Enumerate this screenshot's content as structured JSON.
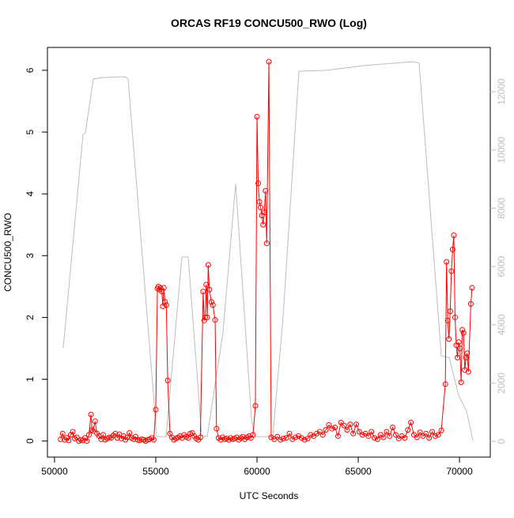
{
  "chart_data": {
    "type": "line",
    "title": "ORCAS RF19 CONCU500_RWO (Log)",
    "x_label": "UTC Seconds",
    "y_label": "CONCU500_RWO",
    "xlim": [
      49650,
      71520
    ],
    "ylim": [
      -0.26,
      6.37
    ],
    "y2lim": [
      -540,
      13520
    ],
    "xticks": [
      50000,
      55000,
      60000,
      65000,
      70000
    ],
    "yticks": [
      0,
      1,
      2,
      3,
      4,
      5,
      6
    ],
    "y2ticks": [
      0,
      2000,
      4000,
      6000,
      8000,
      10000,
      12000
    ],
    "y2_color": "#bebebe",
    "grid": false,
    "series": [
      {
        "color": "#ff0000",
        "marker": "circle",
        "x": [
          50300,
          50400,
          50500,
          50600,
          50700,
          50800,
          50900,
          51000,
          51100,
          51200,
          51300,
          51400,
          51500,
          51600,
          51700,
          51800,
          51850,
          51900,
          52000,
          52100,
          52200,
          52300,
          52400,
          52500,
          52600,
          52700,
          52800,
          52900,
          53000,
          53100,
          53200,
          53300,
          53400,
          53500,
          53600,
          53700,
          53800,
          53900,
          54000,
          54100,
          54200,
          54300,
          54400,
          54500,
          54600,
          54700,
          54800,
          54900,
          55000,
          55080,
          55130,
          55180,
          55230,
          55300,
          55350,
          55400,
          55460,
          55520,
          55590,
          55700,
          55800,
          55900,
          56000,
          56100,
          56200,
          56300,
          56400,
          56500,
          56600,
          56700,
          56800,
          56900,
          57000,
          57100,
          57200,
          57340,
          57390,
          57440,
          57490,
          57540,
          57590,
          57650,
          57750,
          57820,
          57930,
          58000,
          58100,
          58200,
          58300,
          58400,
          58500,
          58600,
          58700,
          58800,
          58900,
          59000,
          59100,
          59200,
          59300,
          59400,
          59500,
          59600,
          59700,
          59800,
          59920,
          60000,
          60060,
          60120,
          60180,
          60240,
          60300,
          60360,
          60420,
          60480,
          60586,
          60700,
          60850,
          61000,
          61150,
          61300,
          61450,
          61600,
          61750,
          61900,
          62050,
          62200,
          62350,
          62500,
          62650,
          62800,
          62950,
          63100,
          63250,
          63400,
          63550,
          63700,
          63850,
          64000,
          64150,
          64300,
          64450,
          64600,
          64750,
          64900,
          65050,
          65200,
          65350,
          65500,
          65650,
          65800,
          65950,
          66100,
          66250,
          66400,
          66550,
          66700,
          66850,
          67000,
          67150,
          67300,
          67450,
          67600,
          67750,
          67900,
          68050,
          68200,
          68350,
          68500,
          68650,
          68800,
          68950,
          69100,
          69300,
          69360,
          69420,
          69480,
          69540,
          69600,
          69660,
          69720,
          69780,
          69840,
          69900,
          69960,
          70020,
          70080,
          70140,
          70200,
          70260,
          70320,
          70380,
          70440,
          70560,
          70620
        ],
        "values": [
          0.03,
          0.12,
          0.02,
          0.05,
          0.01,
          0.1,
          0.15,
          0.04,
          0.06,
          0,
          0.02,
          0.01,
          0.05,
          0,
          0.1,
          0.43,
          0.18,
          0.16,
          0.32,
          0.12,
          0.08,
          0.03,
          0.1,
          0.02,
          0.04,
          0.06,
          0.05,
          0.09,
          0.12,
          0.05,
          0.11,
          0.04,
          0.08,
          0.02,
          0.06,
          0.13,
          0.05,
          0.03,
          0.07,
          0.02,
          0.01,
          0.03,
          0.02,
          0,
          0.02,
          0.03,
          0.05,
          0.02,
          0.51,
          2.47,
          2.5,
          2.45,
          2.48,
          2.42,
          2.18,
          2.48,
          2.25,
          2.2,
          0.98,
          0.12,
          0.06,
          0.02,
          0.04,
          0.06,
          0.08,
          0.05,
          0.1,
          0.07,
          0.05,
          0.12,
          0.13,
          0.08,
          0.04,
          0.02,
          0.06,
          2.42,
          1.95,
          2.0,
          2.53,
          2.0,
          2.85,
          2.45,
          2.25,
          2.2,
          1.96,
          0.2,
          0.05,
          0.02,
          0.06,
          0.03,
          0.04,
          0.02,
          0.05,
          0.03,
          0.04,
          0.06,
          0.02,
          0.05,
          0.07,
          0.03,
          0.06,
          0.08,
          0.05,
          0.1,
          0.57,
          5.25,
          4.17,
          3.87,
          3.78,
          3.65,
          3.5,
          3.7,
          4.05,
          3.2,
          6.14,
          0.06,
          0.03,
          0.07,
          0.02,
          0.04,
          0.05,
          0.12,
          0.03,
          0.06,
          0.08,
          0.05,
          0.02,
          0.04,
          0.1,
          0.08,
          0.12,
          0.15,
          0.1,
          0.18,
          0.26,
          0.2,
          0.22,
          0.08,
          0.3,
          0.25,
          0.18,
          0.27,
          0.12,
          0.27,
          0.15,
          0.1,
          0.12,
          0.08,
          0.15,
          0.05,
          0.03,
          0.1,
          0.06,
          0.15,
          0.08,
          0.22,
          0.1,
          0.04,
          0.08,
          0.05,
          0.18,
          0.3,
          0.1,
          0.06,
          0.14,
          0.08,
          0.12,
          0.05,
          0.15,
          0.08,
          0.1,
          0.17,
          0.92,
          2.9,
          1.95,
          1.65,
          2.1,
          2.75,
          3.1,
          3.33,
          2.0,
          1.55,
          1.35,
          1.6,
          1.5,
          0.95,
          1.8,
          1.75,
          1.15,
          1.35,
          1.42,
          1.12,
          2.22,
          2.48
        ]
      },
      {
        "color": "#bebebe",
        "axis": "y2",
        "x": [
          50430,
          51406,
          51523,
          51914,
          52383,
          53477,
          53633,
          54922,
          55040,
          55508,
          56289,
          56602,
          57266,
          57540,
          58320,
          58945,
          59727,
          59883,
          60781,
          61289,
          62070,
          63398,
          65273,
          67695,
          68008,
          69102,
          69492,
          69961,
          70352,
          70664
        ],
        "values": [
          3204,
          10535,
          10590,
          12435,
          12490,
          12517,
          12435,
          1303,
          163,
          163,
          6326,
          6326,
          217,
          163,
          3747,
          8851,
          760,
          163,
          163,
          4290,
          12707,
          12734,
          12897,
          13033,
          12979,
          2932,
          2878,
          1575,
          1032,
          27
        ]
      }
    ]
  }
}
